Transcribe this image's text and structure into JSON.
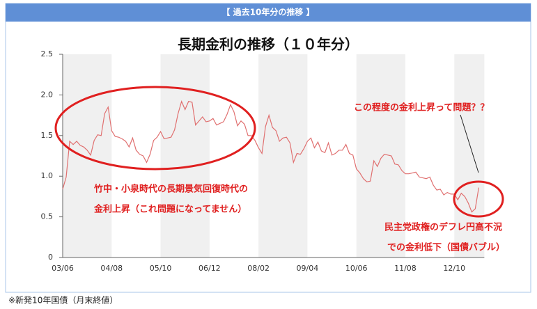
{
  "header": "【 過去10年分の推移 】",
  "footnote": "※新発10年国債（月末終値）",
  "chart_data": {
    "type": "line",
    "title": "長期金利の推移（１０年分）",
    "categories": [
      "03/06",
      null,
      null,
      null,
      null,
      null,
      null,
      null,
      null,
      null,
      null,
      null,
      null,
      null,
      "04/08",
      null,
      null,
      null,
      null,
      null,
      null,
      null,
      null,
      null,
      null,
      null,
      null,
      null,
      "05/10",
      null,
      null,
      null,
      null,
      null,
      null,
      null,
      null,
      null,
      null,
      null,
      null,
      null,
      "06/12",
      null,
      null,
      null,
      null,
      null,
      null,
      null,
      null,
      null,
      null,
      null,
      null,
      null,
      "08/02",
      null,
      null,
      null,
      null,
      null,
      null,
      null,
      null,
      null,
      null,
      null,
      null,
      null,
      "09/04",
      null,
      null,
      null,
      null,
      null,
      null,
      null,
      null,
      null,
      null,
      null,
      null,
      null,
      "10/06",
      null,
      null,
      null,
      null,
      null,
      null,
      null,
      null,
      null,
      null,
      null,
      null,
      null,
      "11/08",
      null,
      null,
      null,
      null,
      null,
      null,
      null,
      null,
      null,
      null,
      null,
      null,
      null,
      "12/10",
      null,
      null,
      null,
      null,
      null,
      null,
      null
    ],
    "values": [
      0.84,
      0.99,
      1.43,
      1.39,
      1.43,
      1.38,
      1.36,
      1.32,
      1.26,
      1.44,
      1.51,
      1.5,
      1.77,
      1.85,
      1.56,
      1.49,
      1.48,
      1.46,
      1.43,
      1.36,
      1.47,
      1.32,
      1.27,
      1.25,
      1.17,
      1.27,
      1.44,
      1.48,
      1.55,
      1.46,
      1.47,
      1.48,
      1.57,
      1.77,
      1.92,
      1.82,
      1.92,
      1.91,
      1.63,
      1.68,
      1.73,
      1.67,
      1.68,
      1.71,
      1.63,
      1.65,
      1.67,
      1.76,
      1.88,
      1.79,
      1.62,
      1.68,
      1.64,
      1.5,
      1.5,
      1.44,
      1.35,
      1.28,
      1.61,
      1.75,
      1.6,
      1.56,
      1.43,
      1.47,
      1.48,
      1.41,
      1.17,
      1.28,
      1.27,
      1.34,
      1.43,
      1.47,
      1.35,
      1.42,
      1.31,
      1.29,
      1.41,
      1.26,
      1.28,
      1.32,
      1.32,
      1.39,
      1.28,
      1.26,
      1.09,
      1.04,
      0.97,
      0.93,
      0.94,
      1.19,
      1.12,
      1.22,
      1.27,
      1.26,
      1.25,
      1.15,
      1.14,
      1.07,
      1.03,
      1.03,
      1.04,
      1.05,
      0.99,
      0.98,
      0.97,
      0.99,
      0.89,
      0.83,
      0.84,
      0.77,
      0.8,
      0.78,
      0.78,
      0.71,
      0.79,
      0.75,
      0.67,
      0.56,
      0.6,
      0.86
    ],
    "color": "#e07070",
    "ylim": [
      0,
      2.5
    ],
    "yticks": [
      0,
      0.5,
      {
        "value": 1,
        "label": "1.0"
      },
      1.5,
      {
        "value": 2,
        "label": "2.0"
      },
      2.5
    ],
    "grid": false,
    "annotations": [
      "竹中・小泉時代の長期景気回復時代の",
      "金利上昇（これ問題になってません）",
      "この程度の金利上昇って問題？？",
      "民主党政権のデフレ円高不況",
      "での金利低下（国債バブル）"
    ]
  }
}
